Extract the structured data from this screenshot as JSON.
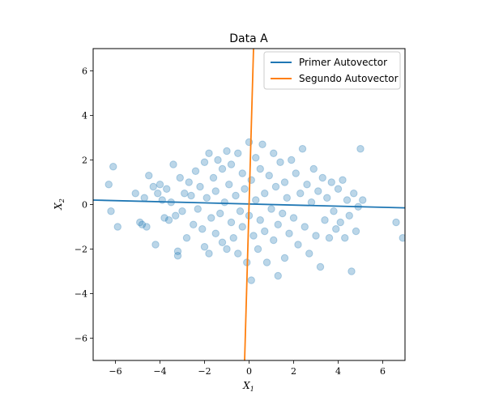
{
  "chart_data": {
    "type": "scatter",
    "title": "Data A",
    "xlabel": "X",
    "xlabel_sub": "1",
    "ylabel": "X",
    "ylabel_sub": "2",
    "xlim": [
      -7,
      7
    ],
    "ylim": [
      -7,
      7
    ],
    "xticks": [
      -6,
      -4,
      -2,
      0,
      2,
      4,
      6
    ],
    "yticks": [
      -6,
      -4,
      -2,
      0,
      2,
      4,
      6
    ],
    "grid": false,
    "legend_position": "upper-right",
    "scatter_color": "#1f77b4",
    "scatter_alpha": 0.3,
    "series": [
      {
        "name": "Primer Autovector",
        "color": "#1f77b4",
        "x": [
          -7,
          7
        ],
        "y": [
          0.2,
          -0.15
        ]
      },
      {
        "name": "Segundo Autovector",
        "color": "#ff7f0e",
        "x": [
          -0.2,
          0.2
        ],
        "y": [
          -7,
          7
        ]
      }
    ],
    "points": [
      [
        -6.3,
        0.9
      ],
      [
        -6.2,
        -0.3
      ],
      [
        -6.1,
        1.7
      ],
      [
        -5.9,
        -1.0
      ],
      [
        -5.1,
        0.5
      ],
      [
        -4.9,
        -0.8
      ],
      [
        -4.8,
        -0.9
      ],
      [
        -4.7,
        0.3
      ],
      [
        -4.6,
        -1.0
      ],
      [
        -4.5,
        1.3
      ],
      [
        -4.3,
        0.8
      ],
      [
        -4.2,
        -1.8
      ],
      [
        -4.1,
        0.5
      ],
      [
        -4.0,
        0.9
      ],
      [
        -3.9,
        0.2
      ],
      [
        -3.8,
        -0.6
      ],
      [
        -3.7,
        0.7
      ],
      [
        -3.6,
        -0.7
      ],
      [
        -3.5,
        0.1
      ],
      [
        -3.4,
        1.8
      ],
      [
        -3.3,
        -0.5
      ],
      [
        -3.2,
        -2.1
      ],
      [
        -3.2,
        -2.3
      ],
      [
        -3.1,
        1.2
      ],
      [
        -3.0,
        -0.3
      ],
      [
        -2.9,
        0.5
      ],
      [
        -2.8,
        -1.5
      ],
      [
        -2.7,
        1.0
      ],
      [
        -2.6,
        0.4
      ],
      [
        -2.5,
        -0.9
      ],
      [
        -2.4,
        1.5
      ],
      [
        -2.3,
        -0.2
      ],
      [
        -2.2,
        0.8
      ],
      [
        -2.1,
        -1.1
      ],
      [
        -2.0,
        1.9
      ],
      [
        -2.0,
        -1.9
      ],
      [
        -1.9,
        0.3
      ],
      [
        -1.8,
        2.3
      ],
      [
        -1.8,
        -2.2
      ],
      [
        -1.7,
        -0.6
      ],
      [
        -1.6,
        1.2
      ],
      [
        -1.5,
        -1.3
      ],
      [
        -1.5,
        0.6
      ],
      [
        -1.4,
        2.0
      ],
      [
        -1.3,
        -0.4
      ],
      [
        -1.2,
        1.6
      ],
      [
        -1.2,
        -1.7
      ],
      [
        -1.1,
        0.1
      ],
      [
        -1.0,
        2.4
      ],
      [
        -1.0,
        -2.0
      ],
      [
        -0.9,
        0.9
      ],
      [
        -0.8,
        -0.8
      ],
      [
        -0.8,
        1.8
      ],
      [
        -0.7,
        -1.5
      ],
      [
        -0.6,
        0.4
      ],
      [
        -0.5,
        2.3
      ],
      [
        -0.5,
        -2.2
      ],
      [
        -0.4,
        -0.3
      ],
      [
        -0.3,
        1.4
      ],
      [
        -0.3,
        -1.0
      ],
      [
        -0.2,
        0.7
      ],
      [
        -0.1,
        -2.6
      ],
      [
        0.0,
        2.8
      ],
      [
        0.0,
        -0.5
      ],
      [
        0.1,
        1.1
      ],
      [
        0.1,
        -3.4
      ],
      [
        0.2,
        -1.4
      ],
      [
        0.3,
        2.1
      ],
      [
        0.3,
        0.2
      ],
      [
        0.4,
        -2.0
      ],
      [
        0.5,
        1.6
      ],
      [
        0.5,
        -0.7
      ],
      [
        0.6,
        2.7
      ],
      [
        0.7,
        -1.2
      ],
      [
        0.7,
        0.5
      ],
      [
        0.8,
        -2.6
      ],
      [
        0.9,
        1.3
      ],
      [
        1.0,
        -0.2
      ],
      [
        1.1,
        2.3
      ],
      [
        1.1,
        -1.6
      ],
      [
        1.2,
        0.8
      ],
      [
        1.3,
        -3.2
      ],
      [
        1.3,
        -0.9
      ],
      [
        1.4,
        1.9
      ],
      [
        1.5,
        -0.4
      ],
      [
        1.6,
        1.0
      ],
      [
        1.6,
        -2.4
      ],
      [
        1.7,
        0.3
      ],
      [
        1.8,
        -1.3
      ],
      [
        1.9,
        2.0
      ],
      [
        2.0,
        -0.6
      ],
      [
        2.1,
        1.4
      ],
      [
        2.2,
        -1.8
      ],
      [
        2.3,
        0.5
      ],
      [
        2.4,
        2.5
      ],
      [
        2.5,
        -1.0
      ],
      [
        2.6,
        0.9
      ],
      [
        2.7,
        -2.2
      ],
      [
        2.8,
        0.1
      ],
      [
        2.9,
        1.6
      ],
      [
        3.0,
        -1.4
      ],
      [
        3.1,
        0.6
      ],
      [
        3.2,
        -2.8
      ],
      [
        3.3,
        1.2
      ],
      [
        3.4,
        -0.7
      ],
      [
        3.5,
        0.3
      ],
      [
        3.6,
        -1.5
      ],
      [
        3.7,
        1.0
      ],
      [
        3.8,
        -0.3
      ],
      [
        3.9,
        -1.1
      ],
      [
        4.0,
        0.7
      ],
      [
        4.1,
        -0.8
      ],
      [
        4.2,
        1.1
      ],
      [
        4.3,
        -1.5
      ],
      [
        4.4,
        0.2
      ],
      [
        4.5,
        -0.5
      ],
      [
        4.6,
        -3.0
      ],
      [
        4.7,
        0.5
      ],
      [
        4.8,
        -1.2
      ],
      [
        4.9,
        -0.1
      ],
      [
        5.0,
        2.5
      ],
      [
        5.1,
        0.2
      ],
      [
        6.6,
        -0.8
      ],
      [
        6.9,
        -1.5
      ]
    ]
  }
}
